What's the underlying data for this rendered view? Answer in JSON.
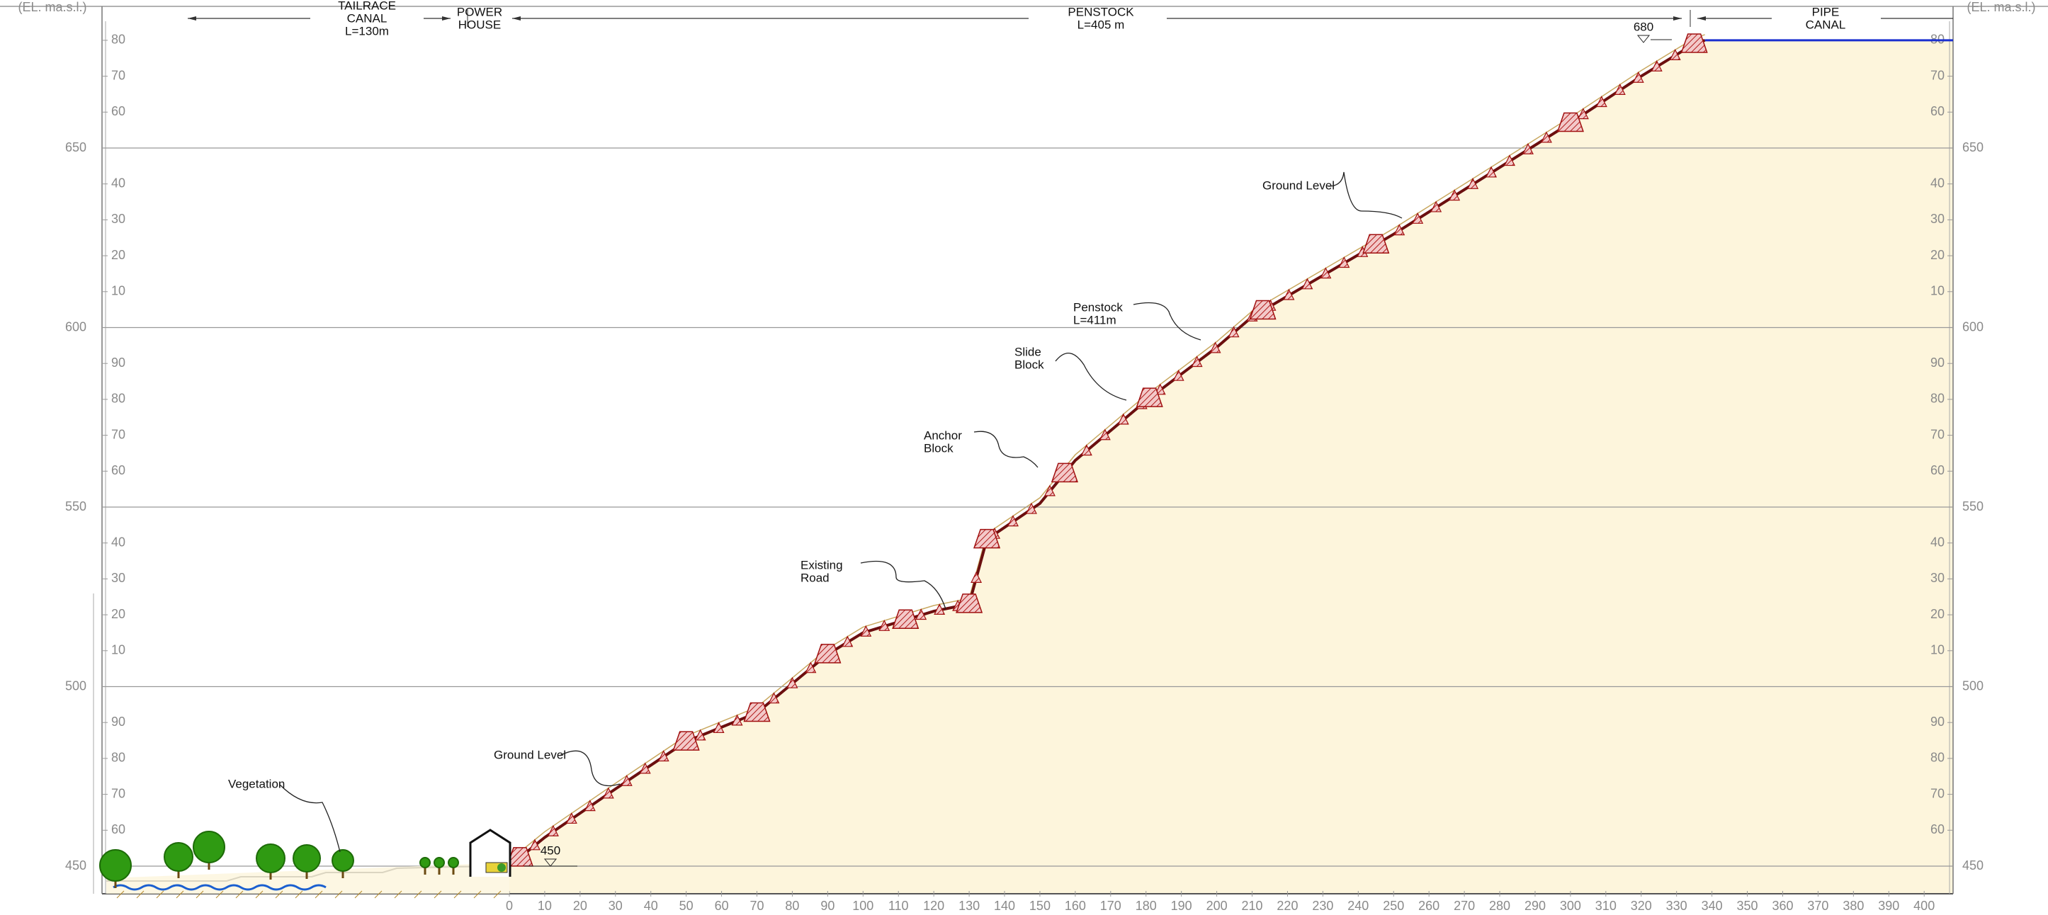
{
  "header": {
    "left_unit": "(EL. ma.s.l.)",
    "right_unit": "(EL. ma.s.l.)"
  },
  "sections": [
    {
      "lines": [
        "TAILRACE",
        "CANAL",
        "L=130m"
      ]
    },
    {
      "lines": [
        "POWER",
        "HOUSE"
      ]
    },
    {
      "lines": [
        "PENSTOCK",
        "L=405 m"
      ]
    },
    {
      "lines": [
        "PIPE",
        "CANAL"
      ]
    }
  ],
  "elevation_labels": [
    "450",
    "60",
    "70",
    "80",
    "90",
    "500",
    "10",
    "20",
    "30",
    "40",
    "550",
    "60",
    "70",
    "80",
    "90",
    "600",
    "10",
    "20",
    "30",
    "40",
    "650",
    "60",
    "70",
    "80"
  ],
  "chainage_labels": [
    "0",
    "10",
    "20",
    "30",
    "40",
    "50",
    "60",
    "70",
    "80",
    "90",
    "100",
    "110",
    "120",
    "130",
    "140",
    "150",
    "160",
    "170",
    "180",
    "190",
    "200",
    "210",
    "220",
    "230",
    "240",
    "250",
    "260",
    "270",
    "280",
    "290",
    "300",
    "310",
    "320",
    "330",
    "340",
    "350",
    "360",
    "370",
    "380",
    "390",
    "400"
  ],
  "annotations": [
    {
      "lines": [
        "Ground Level"
      ]
    },
    {
      "lines": [
        "Penstock",
        "L=411m"
      ]
    },
    {
      "lines": [
        "Slide",
        "Block"
      ]
    },
    {
      "lines": [
        "Anchor",
        "Block"
      ]
    },
    {
      "lines": [
        "Existing",
        "Road"
      ]
    },
    {
      "lines": [
        "Ground Level"
      ]
    },
    {
      "lines": [
        "Vegetation"
      ]
    }
  ],
  "levels": [
    "680",
    "450"
  ]
}
